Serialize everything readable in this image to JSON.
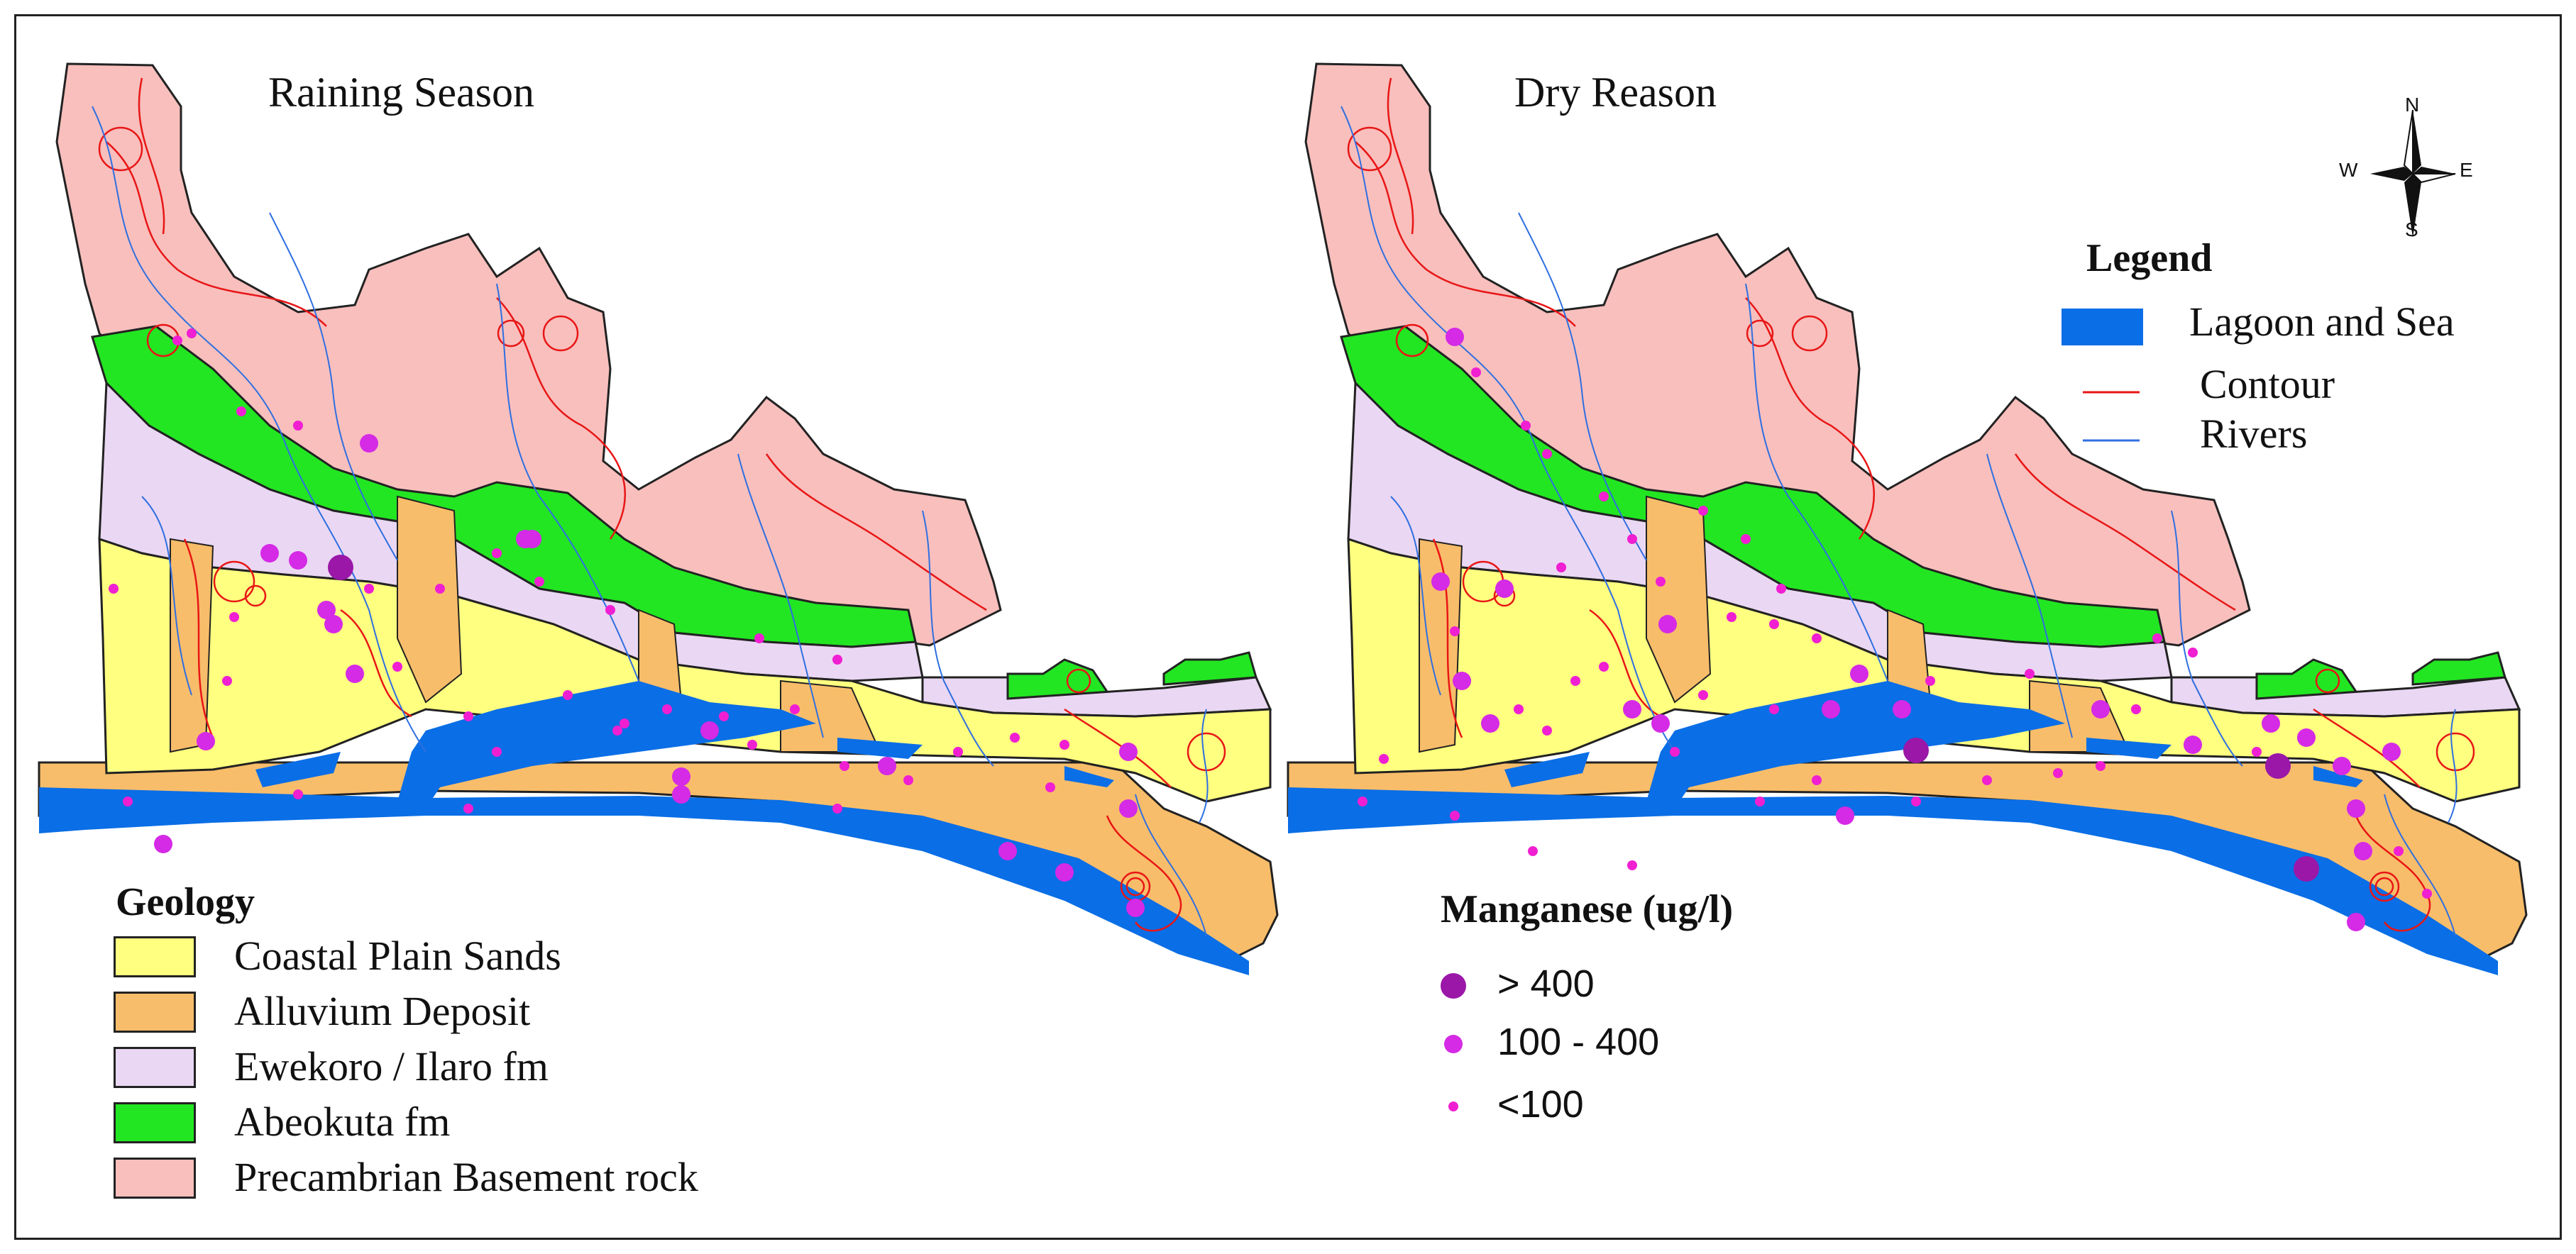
{
  "maps": {
    "left_title": "Raining Season",
    "right_title": "Dry Reason"
  },
  "legend": {
    "heading": "Legend",
    "items": [
      {
        "label": "Lagoon and Sea",
        "symbol": "fill",
        "color": "#0a6ee6"
      },
      {
        "label": "Contour",
        "symbol": "line",
        "color": "#e81616"
      },
      {
        "label": "Rivers",
        "symbol": "line",
        "color": "#2f6fe0"
      }
    ]
  },
  "geology": {
    "heading": "Geology",
    "units": [
      {
        "label": "Coastal Plain Sands",
        "color": "#ffff80"
      },
      {
        "label": "Alluvium Deposit",
        "color": "#f8bd6a"
      },
      {
        "label": "Ewekoro / Ilaro fm",
        "color": "#ead7f3"
      },
      {
        "label": "Abeokuta fm",
        "color": "#22e622"
      },
      {
        "label": "Precambrian Basement rock",
        "color": "#f8bfbd"
      }
    ]
  },
  "manganese": {
    "heading": "Manganese (ug/l)",
    "classes": [
      {
        "label": "> 400",
        "color": "#9a17a8"
      },
      {
        "label": "100 - 400",
        "color": "#d52ae6"
      },
      {
        "label": "<100",
        "color": "#f01fd2"
      }
    ]
  },
  "compass": {
    "n": "N",
    "s": "S",
    "e": "E",
    "w": "W"
  }
}
